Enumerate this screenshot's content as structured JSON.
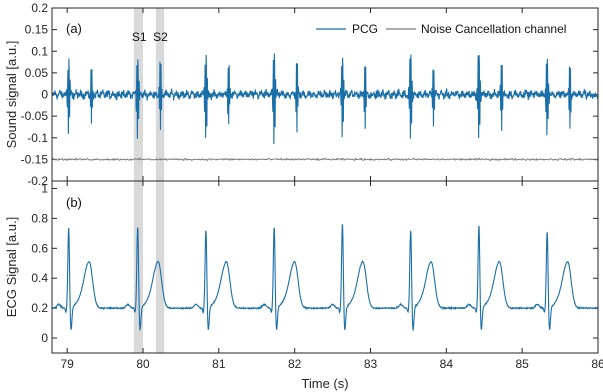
{
  "chart_data": [
    {
      "panel_label": "(a)",
      "type": "line",
      "xlim": [
        78.8,
        86
      ],
      "ylim": [
        -0.2,
        0.2
      ],
      "yticks": [
        -0.2,
        -0.15,
        -0.1,
        -0.05,
        0,
        0.05,
        0.1,
        0.15,
        0.2
      ],
      "ytick_labels": [
        "-0.2",
        "-0.15",
        "-0.1",
        "-0.05",
        "0",
        "0.05",
        "0.1",
        "0.15",
        "0.2"
      ],
      "ylabel": "Sound signal [a.u.]",
      "legend_position": "top-right",
      "series": [
        {
          "name": "PCG",
          "color": "#1a6fa8",
          "beat_times": [
            79.02,
            79.93,
            80.83,
            81.73,
            82.63,
            83.53,
            84.43,
            85.33
          ],
          "s1_amplitude": 0.12,
          "s2_amplitude": -0.09,
          "baseline_noise": 0.012
        },
        {
          "name": "Noise Cancellation channel",
          "color": "#7a7a7a",
          "baseline": -0.15,
          "noise": 0.003
        }
      ],
      "annotations": [
        {
          "text": "S1",
          "x": 79.95
        },
        {
          "text": "S2",
          "x": 80.23
        }
      ],
      "shaded_regions": [
        [
          79.88,
          80.0
        ],
        [
          80.17,
          80.28
        ]
      ],
      "shade_color": "#d9d9d9"
    },
    {
      "panel_label": "(b)",
      "type": "line",
      "xlim": [
        78.8,
        86
      ],
      "ylim": [
        -0.1,
        1.05
      ],
      "yticks": [
        0,
        0.2,
        0.4,
        0.6,
        0.8,
        1
      ],
      "ytick_labels": [
        "0",
        "0.2",
        "0.4",
        "0.6",
        "0.8",
        "1"
      ],
      "xticks": [
        79,
        80,
        81,
        82,
        83,
        84,
        85,
        86
      ],
      "xtick_labels": [
        "79",
        "80",
        "81",
        "82",
        "83",
        "84",
        "85",
        "86"
      ],
      "xlabel": "Time (s)",
      "ylabel": "ECG Signal [a.u.]",
      "series": [
        {
          "name": "ECG",
          "color": "#1a6fa8",
          "r_peak_times": [
            79.02,
            79.93,
            80.83,
            81.73,
            82.63,
            83.53,
            84.43,
            85.33
          ],
          "r_peak_values": [
            0.74,
            0.75,
            0.73,
            0.75,
            0.77,
            0.73,
            0.76,
            0.72
          ],
          "s_trough_value": 0.06,
          "t_wave_value": 0.51,
          "baseline": 0.2
        }
      ],
      "shaded_regions": [
        [
          79.88,
          80.0
        ],
        [
          80.17,
          80.28
        ]
      ],
      "shade_color": "#d9d9d9"
    }
  ]
}
